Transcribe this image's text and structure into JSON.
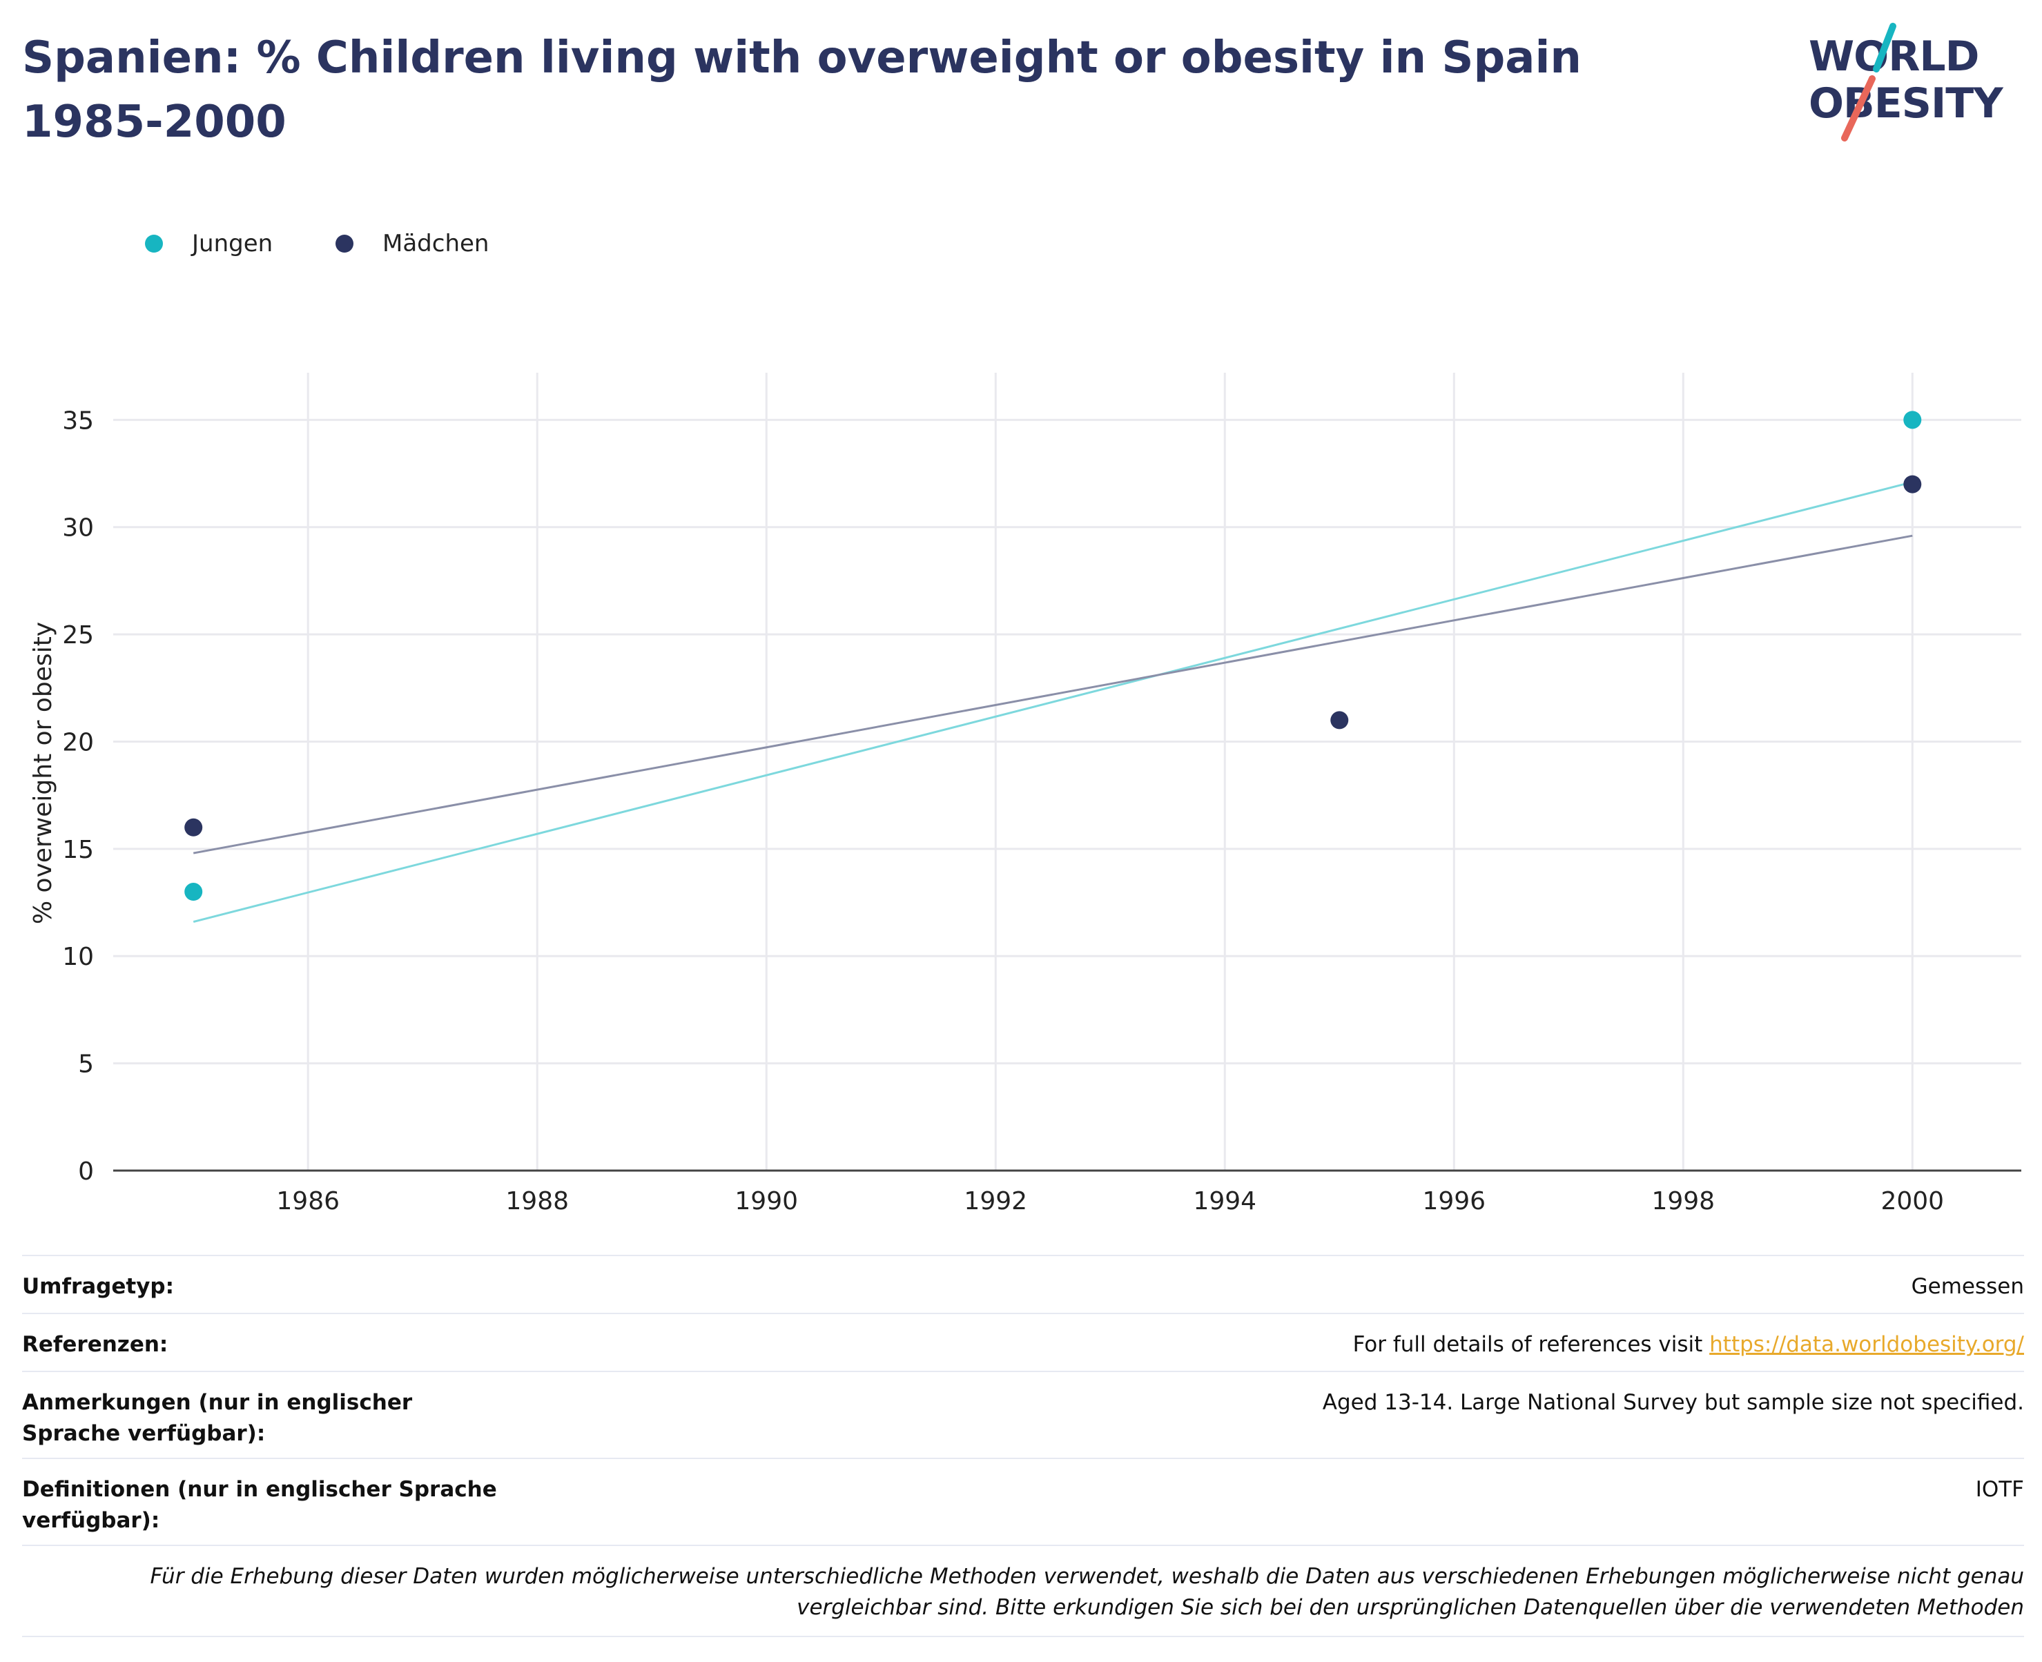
{
  "title": "Spanien: % Children living with overweight or obesity in Spain 1985-2000",
  "logo": {
    "line1": "WORLD",
    "line2": "OBESITY"
  },
  "colors": {
    "jungen": "#17b5c1",
    "maedchen": "#2b3460",
    "jungen_trend": "#7dd8dd",
    "maedchen_trend": "#8a8fa8",
    "title": "#2b3460",
    "link": "#e8a92b",
    "grid": "#e9e9ee"
  },
  "chart_data": {
    "type": "scatter",
    "title": "Spanien: % Children living with overweight or obesity in Spain 1985-2000",
    "xlabel": "",
    "ylabel": "% overweight or obesity",
    "xlim": [
      1984.3,
      2000.95
    ],
    "ylim": [
      0,
      37.2
    ],
    "xticks": [
      1986,
      1988,
      1990,
      1992,
      1994,
      1996,
      1998,
      2000
    ],
    "yticks": [
      0,
      5,
      10,
      15,
      20,
      25,
      30,
      35
    ],
    "grid": true,
    "legend_position": "top-left",
    "series": [
      {
        "name": "Jungen",
        "color": "#17b5c1",
        "trend_color": "#7dd8dd",
        "x": [
          1985,
          2000
        ],
        "y": [
          13,
          35
        ],
        "trend": [
          [
            1985,
            11.6
          ],
          [
            2000,
            32.1
          ]
        ]
      },
      {
        "name": "Mädchen",
        "color": "#2b3460",
        "trend_color": "#8a8fa8",
        "x": [
          1985,
          1995,
          2000
        ],
        "y": [
          16,
          21,
          32
        ],
        "trend": [
          [
            1985,
            14.8
          ],
          [
            2000,
            29.6
          ]
        ]
      }
    ]
  },
  "meta": {
    "survey_type": {
      "key": "Umfragetyp:",
      "value": "Gemessen"
    },
    "references": {
      "key": "Referenzen:",
      "prefix": "For full details of references visit ",
      "link": "https://data.worldobesity.org/"
    },
    "notes": {
      "key": "Anmerkungen (nur in englischer Sprache verfügbar):",
      "value": "Aged 13-14. Large National Survey but sample size not specified."
    },
    "definitions": {
      "key": "Definitionen (nur in englischer Sprache verfügbar):",
      "value": "IOTF"
    },
    "footnote": "Für die Erhebung dieser Daten wurden möglicherweise unterschiedliche Methoden verwendet, weshalb die Daten aus verschiedenen Erhebungen möglicherweise nicht genau vergleichbar sind. Bitte erkundigen Sie sich bei den ursprünglichen Datenquellen über die verwendeten Methoden"
  }
}
